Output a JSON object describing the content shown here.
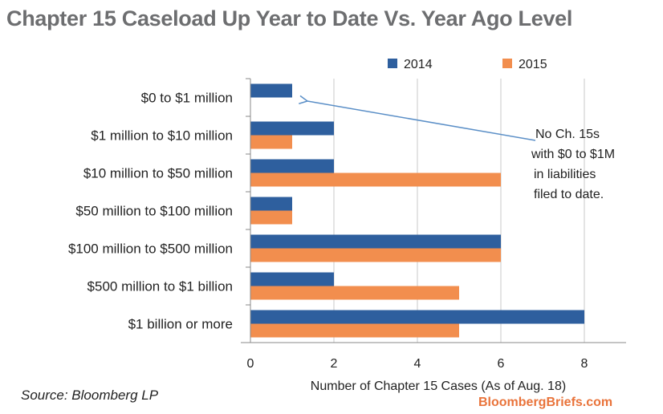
{
  "page": {
    "title": "Chapter 15 Caseload Up Year to Date Vs. Year Ago Level",
    "source": "Source: Bloomberg LP",
    "credit": "BloombergBriefs.com"
  },
  "colors": {
    "series_2014": "#2e5f9e",
    "series_2015": "#f28e4e",
    "title": "#6d6e70",
    "credit": "#e9733a",
    "arrow": "#5b8fc7"
  },
  "chart_data": {
    "type": "bar",
    "orientation": "horizontal",
    "categories": [
      "$0 to $1 million",
      "$1 million to $10 million",
      "$10 million to $50 million",
      "$50 million to $100 million",
      "$100 million to $500 million",
      "$500 million to $1 billion",
      "$1 billion or more"
    ],
    "series": [
      {
        "name": "2014",
        "values": [
          1,
          2,
          2,
          1,
          6,
          2,
          8
        ]
      },
      {
        "name": "2015",
        "values": [
          0,
          1,
          6,
          1,
          6,
          5,
          5
        ]
      }
    ],
    "xlabel": "Number of Chapter 15 Cases (As of Aug. 18)",
    "ylabel": "",
    "xlim": [
      0,
      9
    ],
    "xticks": [
      0,
      2,
      4,
      6,
      8
    ],
    "grid": "vertical",
    "legend_position": "top-right",
    "annotation": {
      "lines": [
        "No Ch. 15s",
        "with $0 to $1M",
        "in liabilities",
        "filed to date."
      ],
      "points_to": "$0 to $1 million"
    }
  }
}
